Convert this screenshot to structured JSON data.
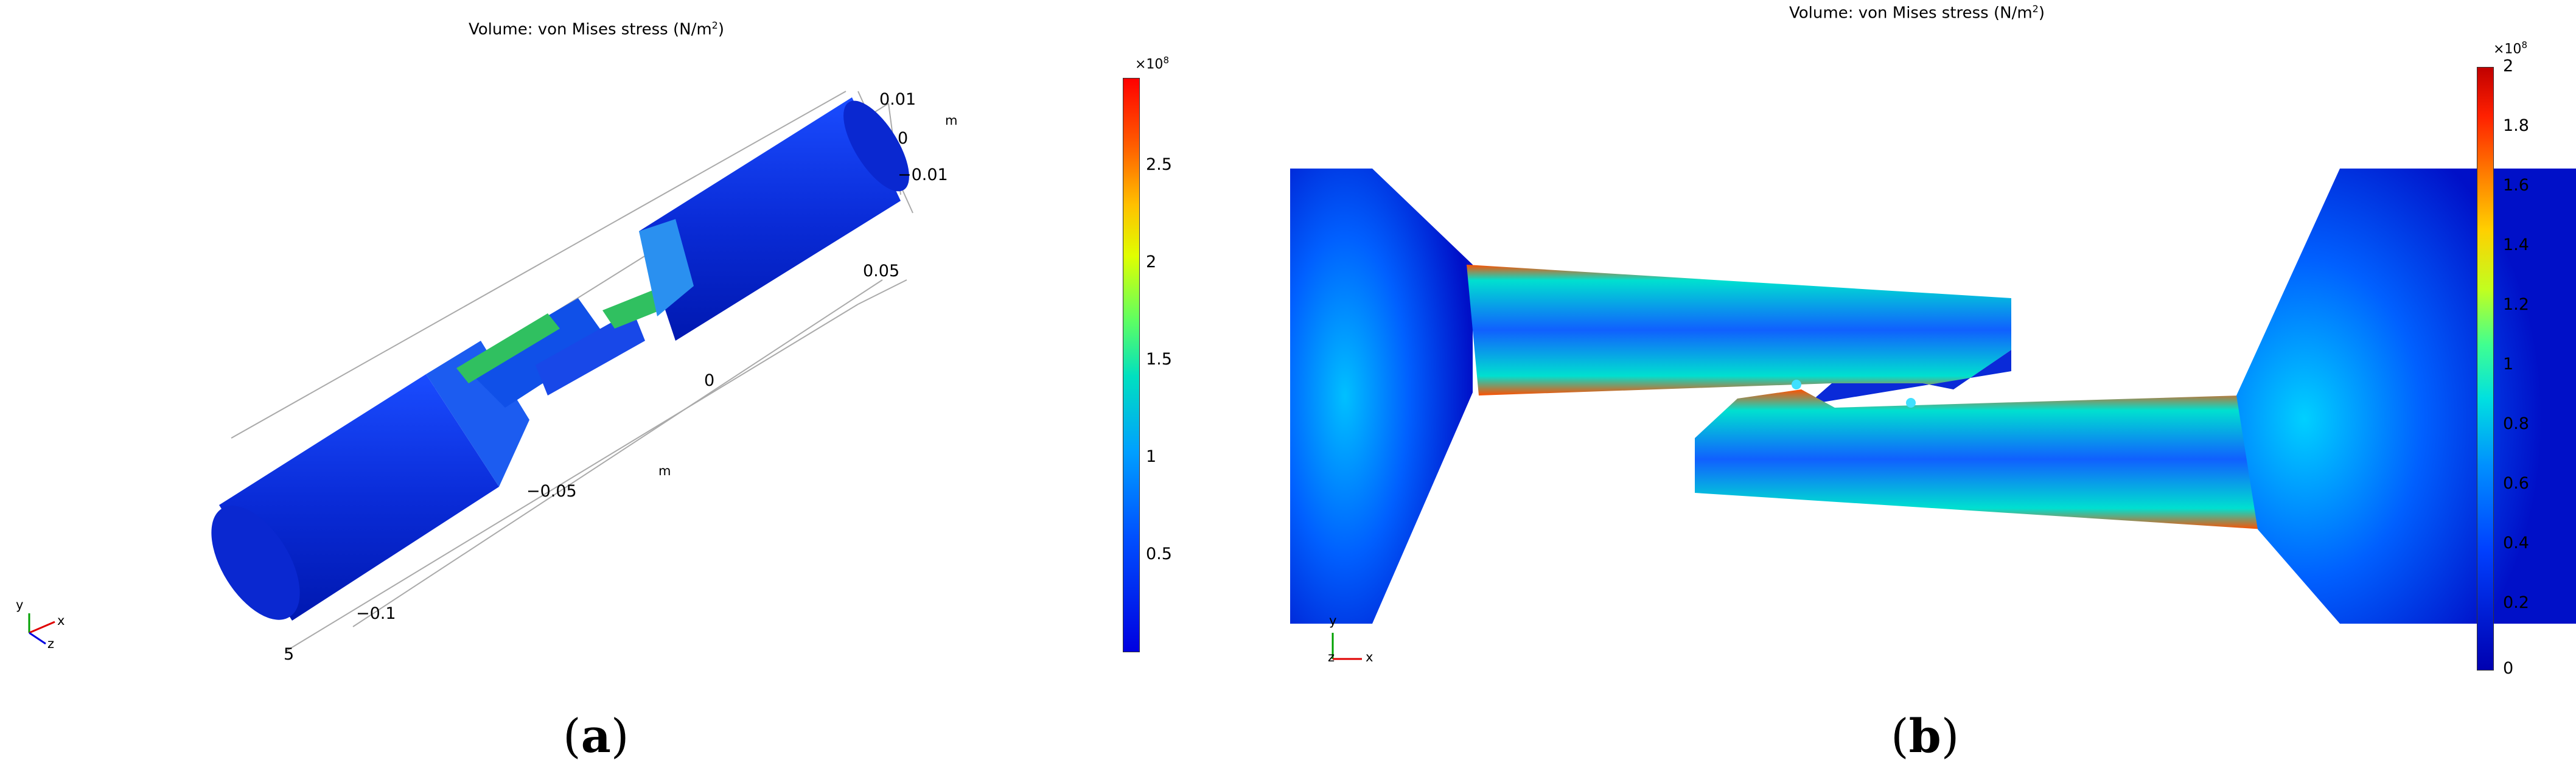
{
  "panel_a": {
    "title": "Volume: von Mises stress (N/m",
    "title_sup": "2",
    "title_close": ")",
    "axis_ticks_right": [
      "0.01",
      "0",
      "−0.01"
    ],
    "axis_unit_right": "m",
    "axis_ticks_mid": [
      "0.05",
      "0",
      "−0.05",
      "−0.1"
    ],
    "axis_unit_mid": "m",
    "axis_tick_bottom": "5",
    "triad": [
      "y",
      "x",
      "z"
    ],
    "colorbar": {
      "multiplier": "×10",
      "multiplier_exp": "8",
      "ticks": [
        "2.5",
        "2",
        "1.5",
        "1",
        "0.5"
      ]
    },
    "caption": "a"
  },
  "panel_b": {
    "title": "Volume: von Mises stress (N/m",
    "title_sup": "2",
    "title_close": ")",
    "triad": [
      "y",
      "z",
      "x"
    ],
    "colorbar": {
      "multiplier": "×10",
      "multiplier_exp": "8",
      "ticks": [
        "2",
        "1.8",
        "1.6",
        "1.4",
        "1.2",
        "1",
        "0.8",
        "0.6",
        "0.4",
        "0.2",
        "0"
      ]
    },
    "caption": "b"
  },
  "colors": {
    "low": "#0000c8",
    "mid": "#00e0ff",
    "high": "#ff2000"
  }
}
